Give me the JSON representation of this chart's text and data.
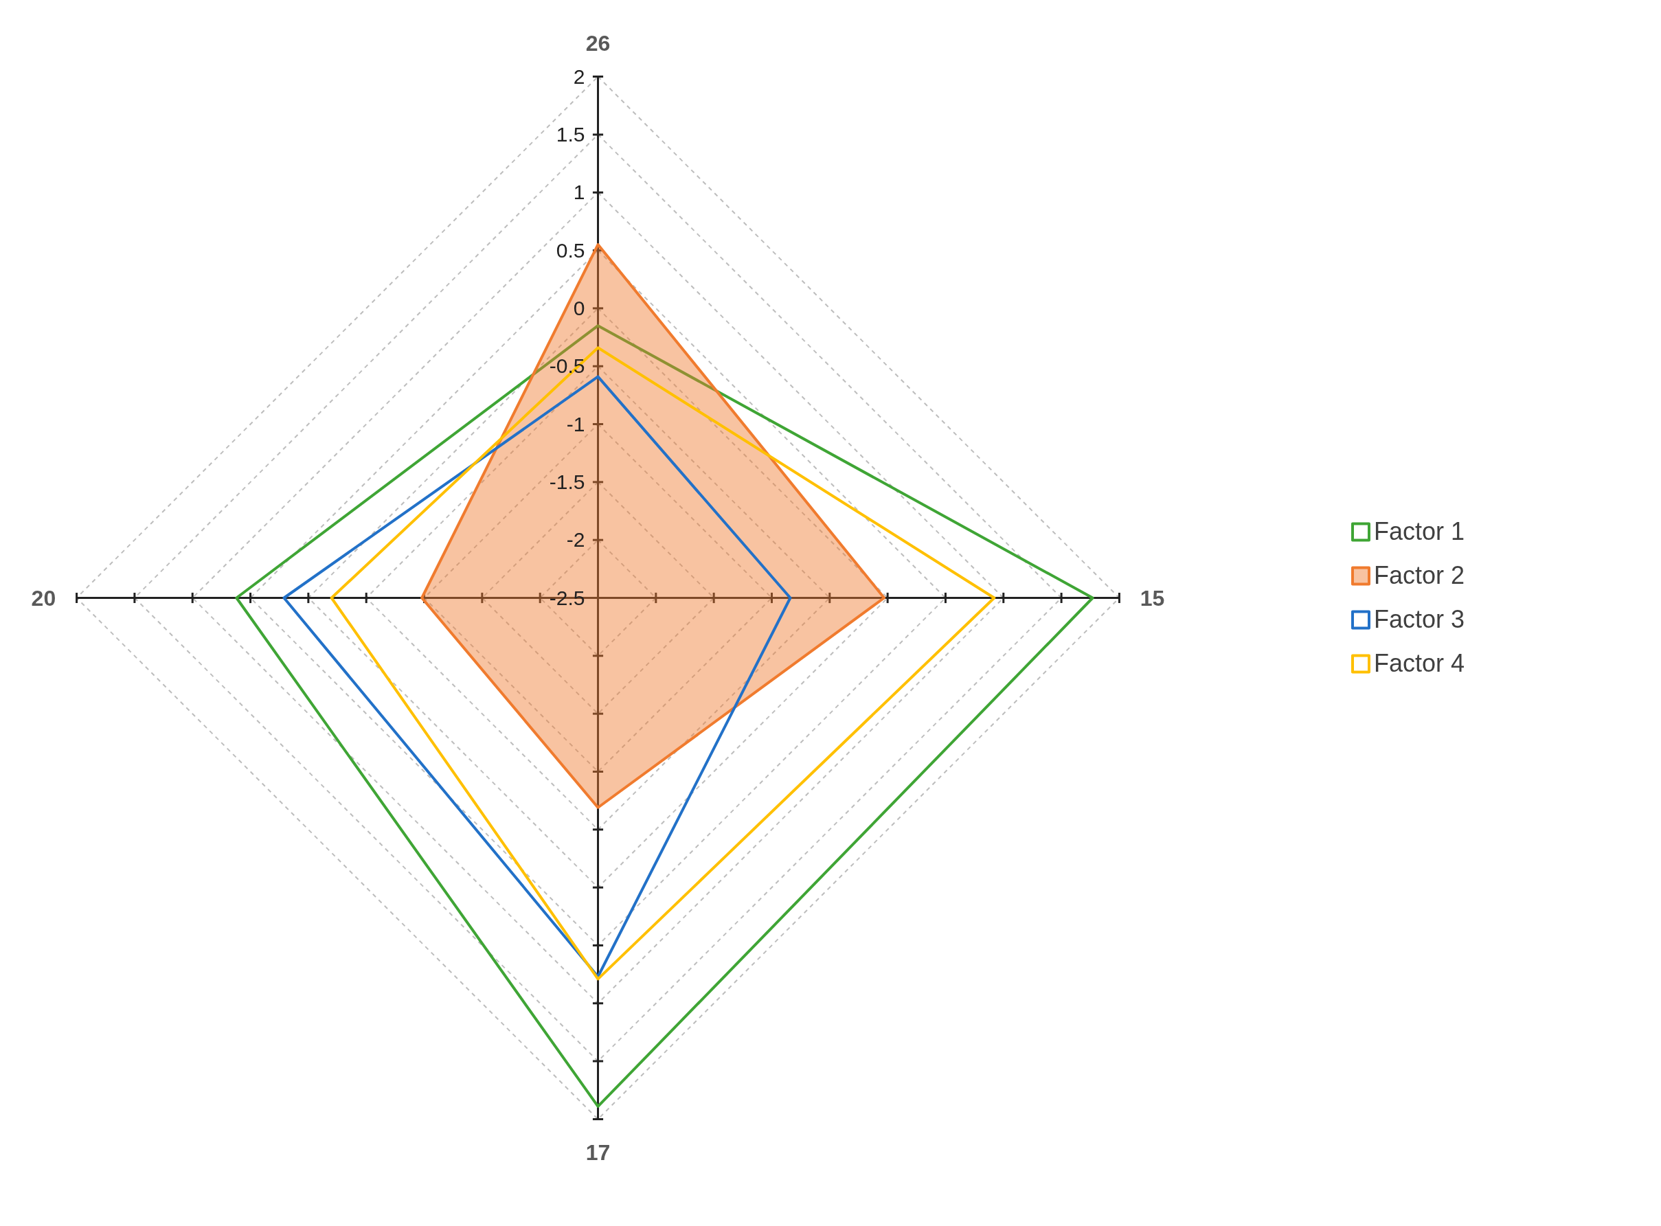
{
  "chart_data": {
    "type": "radar",
    "categories": [
      "26",
      "15",
      "17",
      "20"
    ],
    "ylim": [
      -2.5,
      2
    ],
    "yticks": [
      -2.5,
      -2,
      -1.5,
      -1,
      -0.5,
      0,
      0.5,
      1,
      1.5,
      2
    ],
    "grid": true,
    "legend": "right",
    "series": [
      {
        "name": "Factor 1",
        "color": "#3fa535",
        "values": [
          -0.15,
          1.77,
          1.89,
          0.62
        ]
      },
      {
        "name": "Factor 2",
        "color": "#f07b2e",
        "type": "area",
        "values": [
          0.55,
          -0.03,
          -0.69,
          -0.98
        ]
      },
      {
        "name": "Factor 3",
        "color": "#2271c8",
        "values": [
          -0.59,
          -0.84,
          0.77,
          0.21
        ]
      },
      {
        "name": "Factor 4",
        "color": "#ffc000",
        "values": [
          -0.34,
          0.92,
          0.79,
          -0.2
        ]
      }
    ]
  }
}
